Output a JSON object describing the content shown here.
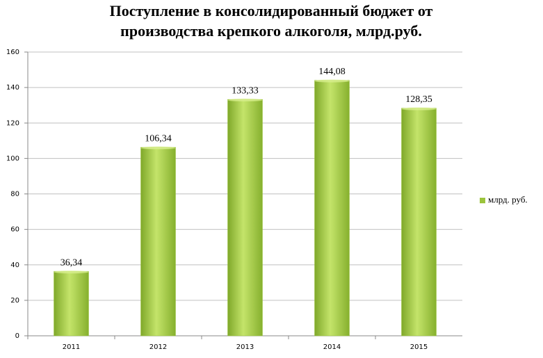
{
  "chart_data": {
    "type": "bar",
    "title": [
      "Поступление в консолидированный бюджет от",
      "производства крепкого алкоголя, млрд.руб."
    ],
    "categories": [
      "2011",
      "2012",
      "2013",
      "2014",
      "2015"
    ],
    "series": [
      {
        "name": "млрд. руб.",
        "color": "#9bc43c",
        "values": [
          36.34,
          106.34,
          133.33,
          144.08,
          128.35
        ],
        "value_labels": [
          "36,34",
          "106,34",
          "133,33",
          "144,08",
          "128,35"
        ]
      }
    ],
    "ylim": [
      0,
      160
    ],
    "yticks": [
      0,
      20,
      40,
      60,
      80,
      100,
      120,
      140,
      160
    ],
    "grid": true,
    "legend": "right"
  }
}
